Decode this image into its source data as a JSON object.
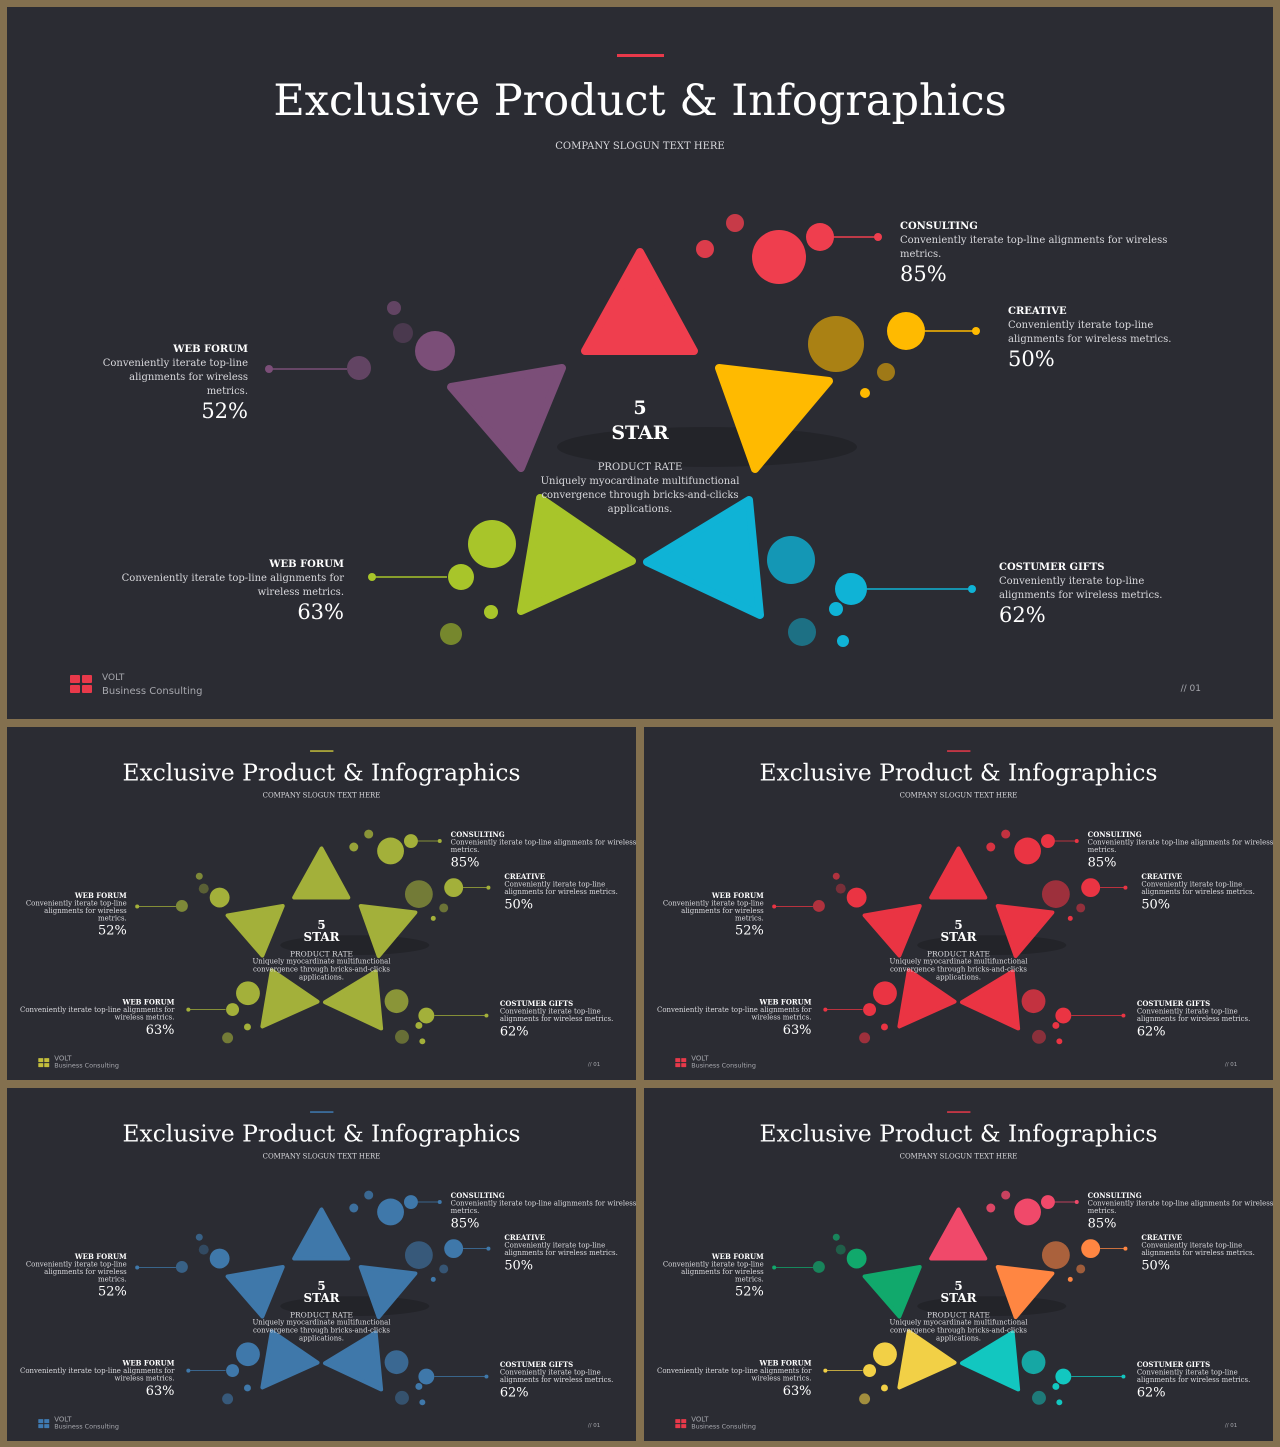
{
  "title": "Exclusive Product & Infographics",
  "slogan": "COMPANY SLOGUN TEXT HERE",
  "center": {
    "number": "5",
    "word": "STAR",
    "subtitle": "PRODUCT RATE",
    "desc_lines": [
      "Uniquely myocardinate multifunctional",
      "convergence through bricks-and-clicks",
      "applications."
    ]
  },
  "items": [
    {
      "id": "consulting",
      "heading": "CONSULTING",
      "lines": [
        "Conveniently iterate top-line alignments for wireless",
        "metrics."
      ],
      "value": "85%"
    },
    {
      "id": "creative",
      "heading": "CREATIVE",
      "lines": [
        "Conveniently iterate top-line",
        "alignments for wireless metrics."
      ],
      "value": "50%"
    },
    {
      "id": "gifts",
      "heading": "COSTUMER GIFTS",
      "lines": [
        "Conveniently iterate top-line",
        "alignments for wireless metrics."
      ],
      "value": "62%"
    },
    {
      "id": "forum-bottom",
      "heading": "WEB FORUM",
      "lines": [
        "Conveniently iterate top-line alignments for",
        "wireless metrics."
      ],
      "value": "63%"
    },
    {
      "id": "forum-top",
      "heading": "WEB FORUM",
      "lines": [
        "Conveniently iterate top-line",
        "alignments for wireless",
        "metrics."
      ],
      "value": "52%"
    }
  ],
  "brand": {
    "name": "VOLT",
    "tagline": "Business  Consulting"
  },
  "page_number": "// 01",
  "slides": [
    {
      "name": "main",
      "accent": "#e8394a",
      "colors": [
        "#ef3e4e",
        "#ffba00",
        "#0fb3d6",
        "#a8c52a",
        "#7b4e78"
      ]
    },
    {
      "name": "olive",
      "accent": "#c4bf3c",
      "colors": [
        "#a3b03a",
        "#a3b03a",
        "#a3b03a",
        "#a3b03a",
        "#a3b03a"
      ]
    },
    {
      "name": "red",
      "accent": "#e8394a",
      "colors": [
        "#ea3443",
        "#ea3443",
        "#ea3443",
        "#ea3443",
        "#ea3443"
      ]
    },
    {
      "name": "blue",
      "accent": "#3f7bb3",
      "colors": [
        "#3f78aa",
        "#3f78aa",
        "#3f78aa",
        "#3f78aa",
        "#3f78aa"
      ]
    },
    {
      "name": "multi",
      "accent": "#e8394a",
      "colors": [
        "#f0496a",
        "#ff8642",
        "#12c7c0",
        "#f2d046",
        "#11a96c"
      ]
    }
  ]
}
